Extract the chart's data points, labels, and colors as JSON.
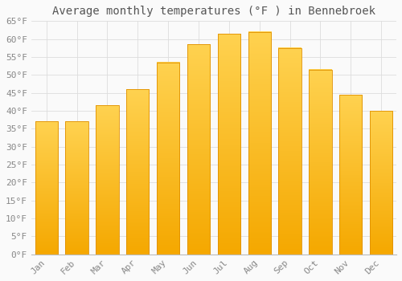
{
  "title": "Average monthly temperatures (°F ) in Bennebroek",
  "months": [
    "Jan",
    "Feb",
    "Mar",
    "Apr",
    "May",
    "Jun",
    "Jul",
    "Aug",
    "Sep",
    "Oct",
    "Nov",
    "Dec"
  ],
  "values": [
    37,
    37,
    41.5,
    46,
    53.5,
    58.5,
    61.5,
    62,
    57.5,
    51.5,
    44.5,
    40
  ],
  "bar_color_top": "#FFC125",
  "bar_color_bottom": "#F5A800",
  "bar_edge_color": "#E09000",
  "ylim": [
    0,
    65
  ],
  "yticks": [
    0,
    5,
    10,
    15,
    20,
    25,
    30,
    35,
    40,
    45,
    50,
    55,
    60,
    65
  ],
  "background_color": "#FAFAFA",
  "grid_color": "#DDDDDD",
  "title_fontsize": 10,
  "tick_fontsize": 8,
  "font_family": "monospace",
  "tick_color": "#888888",
  "title_color": "#555555"
}
